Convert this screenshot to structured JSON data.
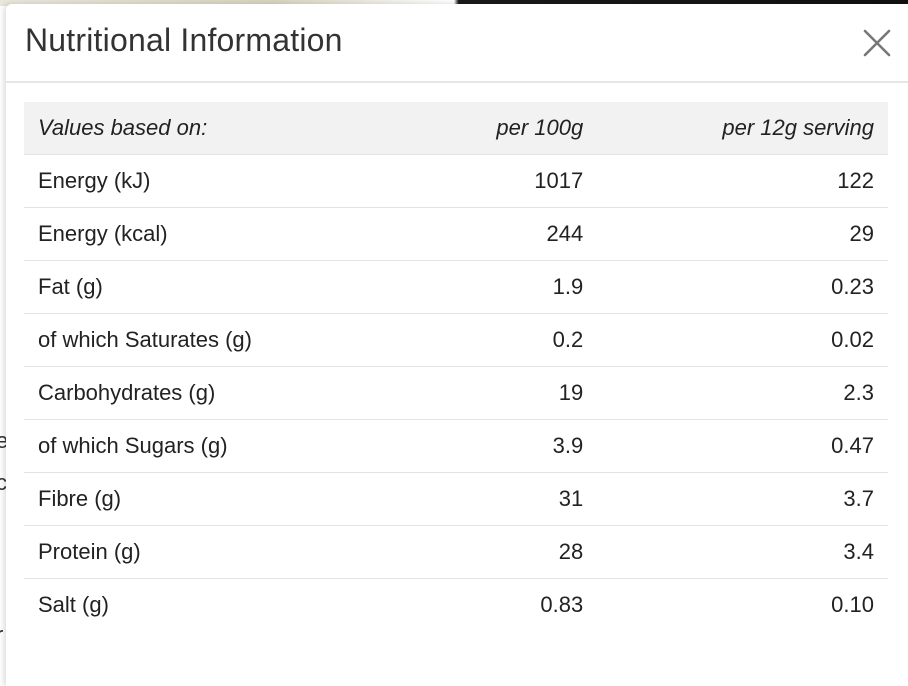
{
  "modal": {
    "title": "Nutritional Information",
    "close_icon": "close-icon"
  },
  "table": {
    "headers": [
      "Values based on:",
      "per 100g",
      "per 12g serving"
    ],
    "rows": [
      {
        "label": "Energy (kJ)",
        "per_100g": "1017",
        "per_serving": "122"
      },
      {
        "label": "Energy (kcal)",
        "per_100g": "244",
        "per_serving": "29"
      },
      {
        "label": "Fat (g)",
        "per_100g": "1.9",
        "per_serving": "0.23"
      },
      {
        "label": "of which Saturates (g)",
        "per_100g": "0.2",
        "per_serving": "0.02"
      },
      {
        "label": "Carbohydrates (g)",
        "per_100g": "19",
        "per_serving": "2.3"
      },
      {
        "label": "of which Sugars (g)",
        "per_100g": "3.9",
        "per_serving": "0.47"
      },
      {
        "label": "Fibre (g)",
        "per_100g": "31",
        "per_serving": "3.7"
      },
      {
        "label": "Protein (g)",
        "per_100g": "28",
        "per_serving": "3.4"
      },
      {
        "label": "Salt (g)",
        "per_100g": "0.83",
        "per_serving": "0.10"
      }
    ]
  },
  "colors": {
    "header_bg": "#f2f2f2",
    "text": "#222222",
    "title": "#333333",
    "divider": "#e3e3e3"
  }
}
